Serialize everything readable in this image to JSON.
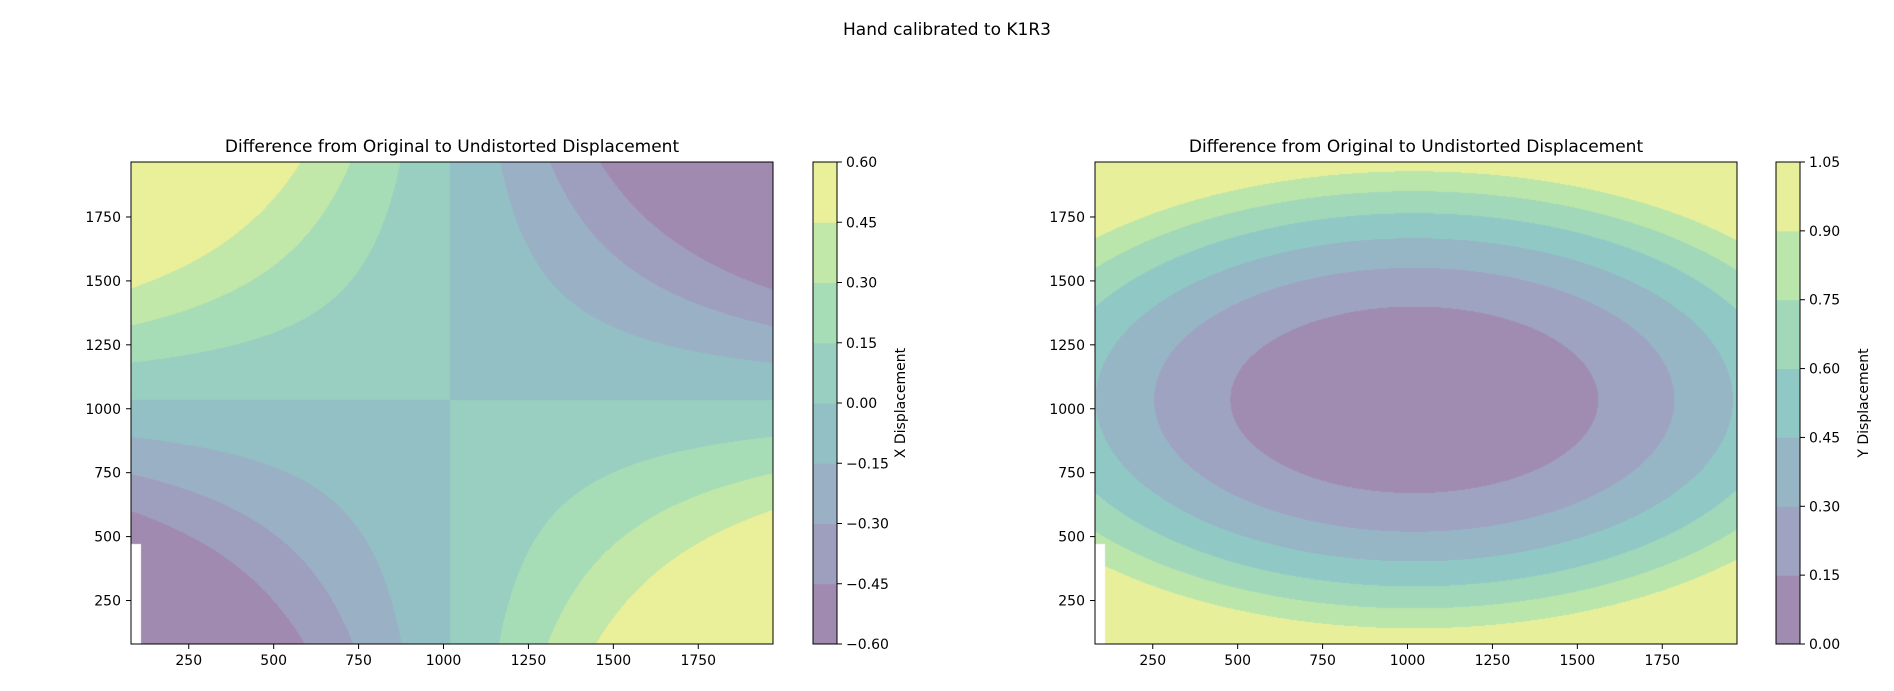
{
  "title": "Hand calibrated to K1R3",
  "colormap": [
    "#440154",
    "#3b528b",
    "#21918c",
    "#5ec962",
    "#fde725"
  ],
  "chart_data": [
    {
      "type": "contourf",
      "title": "Difference from Original to Undistorted Displacement",
      "xlim": [
        80,
        1970
      ],
      "ylim": [
        80,
        1965
      ],
      "xticks": [
        250,
        500,
        750,
        1000,
        1250,
        1500,
        1750
      ],
      "yticks": [
        250,
        500,
        750,
        1000,
        1250,
        1500,
        1750
      ],
      "colorbar": {
        "label": "X Displacement",
        "levels": [
          -0.6,
          -0.45,
          -0.3,
          -0.15,
          0.0,
          0.15,
          0.3,
          0.45,
          0.6
        ],
        "tick_labels": [
          "−0.60",
          "−0.45",
          "−0.30",
          "−0.15",
          "0.00",
          "0.15",
          "0.30",
          "0.45",
          "0.60"
        ]
      },
      "field": {
        "kind": "x",
        "center": [
          1020,
          1035
        ],
        "scale": 0.5,
        "valid_x_min": 110
      }
    },
    {
      "type": "contourf",
      "title": "Difference from Original to Undistorted Displacement",
      "xlim": [
        80,
        1970
      ],
      "ylim": [
        80,
        1965
      ],
      "xticks": [
        250,
        500,
        750,
        1000,
        1250,
        1500,
        1750
      ],
      "yticks": [
        250,
        500,
        750,
        1000,
        1250,
        1500,
        1750
      ],
      "colorbar": {
        "label": "Y Displacement",
        "levels": [
          0.0,
          0.15,
          0.3,
          0.45,
          0.6,
          0.75,
          0.9,
          1.05
        ],
        "tick_labels": [
          "0.00",
          "0.15",
          "0.30",
          "0.45",
          "0.60",
          "0.75",
          "0.90",
          "1.05"
        ]
      },
      "field": {
        "kind": "y",
        "center": [
          1020,
          1035
        ],
        "scale": 0.95,
        "valid_x_min": 110
      }
    }
  ]
}
